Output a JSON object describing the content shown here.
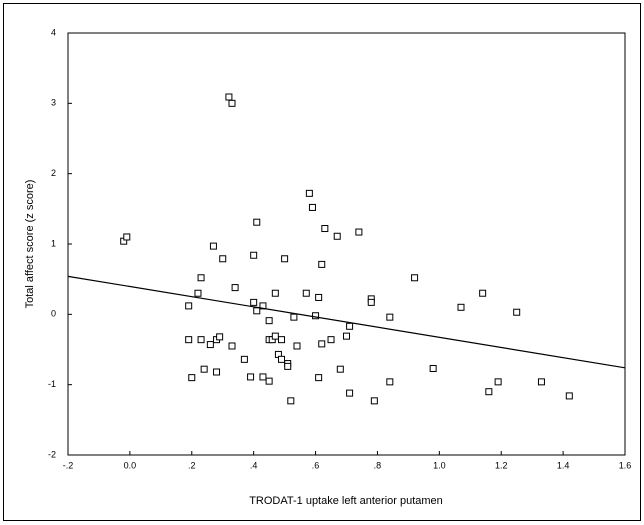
{
  "chart_data": {
    "type": "scatter",
    "x_label": "TRODAT-1 uptake left anterior putamen",
    "y_label": "Total affect score (z score)",
    "xlim": [
      -0.2,
      1.6
    ],
    "ylim": [
      -2,
      4
    ],
    "xticks": [
      {
        "value": -0.2,
        "label": "-.2"
      },
      {
        "value": 0,
        "label": "0.0"
      },
      {
        "value": 0.2,
        "label": ".2"
      },
      {
        "value": 0.4,
        "label": ".4"
      },
      {
        "value": 0.6,
        "label": ".6"
      },
      {
        "value": 0.8,
        "label": ".8"
      },
      {
        "value": 1.0,
        "label": "1.0"
      },
      {
        "value": 1.2,
        "label": "1.2"
      },
      {
        "value": 1.4,
        "label": "1.4"
      },
      {
        "value": 1.6,
        "label": "1.6"
      }
    ],
    "yticks": [
      -2,
      -1,
      0,
      1,
      2,
      3,
      4
    ],
    "color": "#000000",
    "x": [
      -0.02,
      -0.01,
      0.32,
      0.33,
      0.19,
      0.19,
      0.2,
      0.23,
      0.22,
      0.23,
      0.24,
      0.26,
      0.27,
      0.28,
      0.28,
      0.29,
      0.3,
      0.33,
      0.34,
      0.37,
      0.39,
      0.4,
      0.4,
      0.41,
      0.41,
      0.43,
      0.43,
      0.45,
      0.45,
      0.45,
      0.46,
      0.47,
      0.47,
      0.48,
      0.49,
      0.49,
      0.5,
      0.51,
      0.51,
      0.52,
      0.53,
      0.54,
      0.57,
      0.58,
      0.59,
      0.6,
      0.61,
      0.61,
      0.62,
      0.62,
      0.63,
      0.65,
      0.67,
      0.68,
      0.7,
      0.71,
      0.71,
      0.74,
      0.78,
      0.78,
      0.79,
      0.84,
      0.84,
      0.92,
      0.98,
      1.07,
      1.14,
      1.16,
      1.19,
      1.25,
      1.33,
      1.42
    ],
    "y": [
      1.04,
      1.1,
      3.09,
      3.0,
      0.12,
      -0.36,
      -0.9,
      -0.36,
      0.3,
      0.52,
      -0.78,
      -0.43,
      0.97,
      -0.36,
      -0.82,
      -0.32,
      0.79,
      -0.45,
      0.38,
      -0.64,
      -0.89,
      0.17,
      0.84,
      1.31,
      0.05,
      -0.89,
      0.12,
      -0.09,
      -0.36,
      -0.95,
      -0.36,
      -0.31,
      0.3,
      -0.57,
      -0.36,
      -0.64,
      0.79,
      -0.7,
      -0.74,
      -1.23,
      -0.04,
      -0.45,
      0.3,
      1.72,
      1.52,
      -0.02,
      0.24,
      -0.9,
      0.71,
      -0.42,
      1.22,
      -0.36,
      1.11,
      -0.78,
      -0.31,
      -0.17,
      -1.12,
      1.17,
      0.22,
      0.17,
      -1.23,
      -0.04,
      -0.96,
      0.52,
      -0.77,
      0.1,
      0.3,
      -1.1,
      -0.96,
      0.03,
      -0.96,
      -1.16
    ],
    "fit_line": {
      "x": [
        -0.2,
        1.6
      ],
      "y": [
        0.54,
        -0.76
      ]
    }
  }
}
